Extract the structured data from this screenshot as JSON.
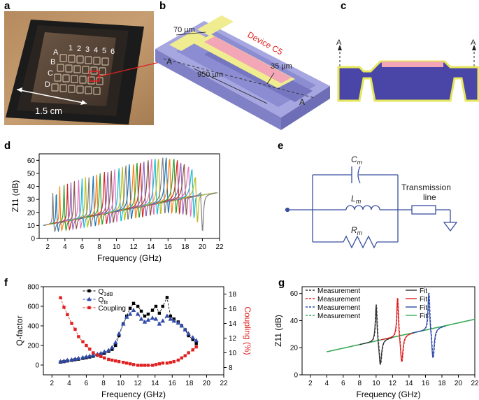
{
  "panel_labels": {
    "a": "a",
    "b": "b",
    "c": "c",
    "d": "d",
    "e": "e",
    "f": "f",
    "g": "g"
  },
  "panel_a": {
    "col_labels": [
      "1",
      "2",
      "3",
      "4",
      "5",
      "6"
    ],
    "row_labels": [
      "A",
      "B",
      "C",
      "D"
    ],
    "scale_label": "1.5 cm"
  },
  "panel_b": {
    "device_label": "Device C5",
    "dim_width": "70 µm",
    "dim_length": "950 µm",
    "dim_gap": "35 µm",
    "cut_label_left": "A",
    "cut_label_right": "A"
  },
  "panel_c": {
    "cut_label_left": "A",
    "cut_label_right": "A"
  },
  "panel_e": {
    "cm_label": "C",
    "cm_sub": "m",
    "lm_label": "L",
    "lm_sub": "m",
    "rm_label": "R",
    "rm_sub": "m",
    "tl_label_line1": "Transmission",
    "tl_label_line2": "line"
  },
  "colors": {
    "circuit": "#3a4fa0",
    "qdb": "#000000",
    "qfit": "#2f4aa8",
    "coupling": "#e02020",
    "fit_green": "#3caa5a"
  },
  "chart_data": [
    {
      "id": "d",
      "type": "line",
      "xlabel": "Frequency (GHz)",
      "ylabel": "Z11 (dB)",
      "xlim": [
        1,
        22
      ],
      "ylim": [
        0,
        65
      ],
      "xticks": [
        "2",
        "4",
        "6",
        "8",
        "10",
        "12",
        "14",
        "16",
        "18",
        "20",
        "22"
      ],
      "yticks": [
        "0",
        "10",
        "20",
        "30",
        "40",
        "50",
        "60"
      ],
      "resonance_frequencies": [
        2.6,
        3.0,
        3.4,
        3.9,
        4.3,
        4.7,
        5.1,
        5.6,
        6.0,
        6.4,
        6.8,
        7.3,
        7.7,
        8.1,
        8.6,
        9.0,
        9.4,
        9.8,
        10.3,
        10.7,
        11.1,
        11.5,
        12.0,
        12.4,
        12.8,
        13.2,
        13.7,
        14.1,
        14.5,
        14.9,
        15.4,
        15.8,
        16.2,
        16.7,
        17.1,
        17.5,
        17.9,
        18.4,
        18.8,
        19.2,
        19.8
      ],
      "peak_values": [
        36,
        38,
        40,
        41,
        42,
        43,
        44,
        45,
        46,
        47,
        47,
        48,
        49,
        50,
        51,
        51,
        52,
        53,
        54,
        55,
        56,
        57,
        57,
        58,
        58,
        59,
        60,
        61,
        61,
        61,
        62,
        62,
        61,
        61,
        60,
        58,
        57,
        55,
        53,
        47,
        35
      ]
    },
    {
      "id": "f",
      "type": "line",
      "xlabel": "Frequency (GHz)",
      "ylabel": "Q-factor",
      "y2label": "Coupling (%)",
      "xlim": [
        1,
        22
      ],
      "ylim": [
        -100,
        800
      ],
      "y2lim": [
        7,
        19
      ],
      "xticks": [
        "2",
        "4",
        "6",
        "8",
        "10",
        "12",
        "14",
        "16",
        "18",
        "20",
        "22"
      ],
      "yticks": [
        "0",
        "200",
        "400",
        "600",
        "800"
      ],
      "y2ticks": [
        "8",
        "10",
        "12",
        "14",
        "16",
        "18"
      ],
      "legend": [
        "Q3dB",
        "Qfit",
        "Coupling"
      ],
      "legend_main": [
        "Q",
        "Q",
        "Coupling"
      ],
      "legend_sub": [
        "3dB",
        "fit",
        ""
      ],
      "x": [
        3.0,
        3.4,
        3.8,
        4.3,
        4.7,
        5.1,
        5.6,
        6.0,
        6.4,
        6.8,
        7.3,
        7.7,
        8.1,
        8.6,
        9.0,
        9.4,
        9.8,
        10.3,
        10.7,
        11.1,
        11.5,
        12.0,
        12.4,
        12.8,
        13.2,
        13.7,
        14.1,
        14.5,
        14.9,
        15.4,
        15.8,
        16.2,
        16.7,
        17.1,
        17.5,
        17.9,
        18.4,
        18.8
      ],
      "series": [
        {
          "name": "Q3dB",
          "values": [
            30,
            35,
            42,
            48,
            55,
            60,
            68,
            75,
            82,
            90,
            100,
            110,
            120,
            140,
            160,
            200,
            300,
            420,
            500,
            580,
            630,
            600,
            550,
            500,
            520,
            560,
            600,
            530,
            600,
            690,
            500,
            470,
            440,
            400,
            360,
            300,
            260,
            220
          ]
        },
        {
          "name": "Qfit",
          "values": [
            35,
            40,
            48,
            54,
            62,
            68,
            76,
            84,
            92,
            100,
            110,
            120,
            135,
            150,
            180,
            230,
            320,
            420,
            490,
            520,
            560,
            520,
            470,
            440,
            460,
            480,
            470,
            420,
            450,
            500,
            470,
            450,
            430,
            400,
            360,
            320,
            280,
            250
          ]
        },
        {
          "name": "Coupling",
          "values": [
            17.5,
            16.2,
            15.2,
            14.0,
            13.2,
            12.2,
            11.5,
            11.0,
            10.5,
            10.0,
            9.7,
            9.5,
            9.3,
            9.1,
            9.0,
            8.9,
            8.8,
            8.7,
            8.6,
            8.5,
            8.4,
            8.3,
            8.3,
            8.3,
            8.3,
            8.3,
            8.4,
            8.5,
            8.6,
            8.6,
            8.7,
            8.8,
            9.0,
            9.3,
            9.6,
            10.0,
            10.4,
            10.8
          ]
        }
      ]
    },
    {
      "id": "g",
      "type": "line",
      "xlabel": "Frequency (GHz)",
      "ylabel": "Z11 (dB)",
      "xlim": [
        1,
        22
      ],
      "ylim": [
        0,
        65
      ],
      "xticks": [
        "2",
        "4",
        "6",
        "8",
        "10",
        "12",
        "14",
        "16",
        "18",
        "20",
        "22"
      ],
      "yticks": [
        "0",
        "20",
        "40",
        "60"
      ],
      "legend_measurement": [
        "Measurement",
        "Measurement",
        "Measurement",
        "Measurement"
      ],
      "legend_fit": [
        "Fit",
        "Fit",
        "Fit",
        "Fit"
      ],
      "series": [
        {
          "name": "Measurement",
          "f0": 10.0,
          "peak": 54,
          "dip": 6
        },
        {
          "name": "Measurement",
          "f0": 12.6,
          "peak": 59,
          "dip": 8
        },
        {
          "name": "Measurement",
          "f0": 16.4,
          "peak": 63,
          "dip": 11
        },
        {
          "name": "Measurement",
          "baseline_start": [
            4,
            17
          ],
          "baseline_end": [
            22,
            41
          ]
        }
      ]
    }
  ]
}
